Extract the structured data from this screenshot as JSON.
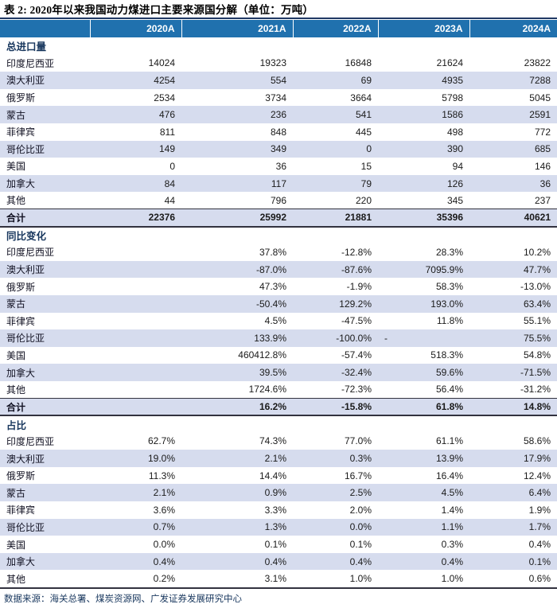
{
  "title": "表 2:  2020年以来我国动力煤进口主要来源国分解（单位：万吨）",
  "footer": {
    "source": "数据来源：海关总署、煤炭资源网、广发证券发展研究中心"
  },
  "colors": {
    "header_bg": "#2071ae",
    "row_alt_bg": "#d6dcee",
    "accent_line": "#1f3864",
    "rule_line": "#32323f",
    "section_header_text": "#17365d"
  },
  "chart_data": {
    "type": "table",
    "title": "2020年以来我国动力煤进口主要来源国分解（单位：万吨）",
    "columns": [
      "",
      "2020A",
      "2021A",
      "2022A",
      "2023A",
      "2024A"
    ],
    "sections": [
      {
        "header": "总进口量",
        "rows": [
          {
            "label": "印度尼西亚",
            "values": [
              "14024",
              "19323",
              "16848",
              "21624",
              "23822"
            ]
          },
          {
            "label": "澳大利亚",
            "values": [
              "4254",
              "554",
              "69",
              "4935",
              "7288"
            ]
          },
          {
            "label": "俄罗斯",
            "values": [
              "2534",
              "3734",
              "3664",
              "5798",
              "5045"
            ]
          },
          {
            "label": "蒙古",
            "values": [
              "476",
              "236",
              "541",
              "1586",
              "2591"
            ]
          },
          {
            "label": "菲律宾",
            "values": [
              "811",
              "848",
              "445",
              "498",
              "772"
            ]
          },
          {
            "label": "哥伦比亚",
            "values": [
              "149",
              "349",
              "0",
              "390",
              "685"
            ]
          },
          {
            "label": "美国",
            "values": [
              "0",
              "36",
              "15",
              "94",
              "146"
            ]
          },
          {
            "label": "加拿大",
            "values": [
              "84",
              "117",
              "79",
              "126",
              "36"
            ]
          },
          {
            "label": "其他",
            "values": [
              "44",
              "796",
              "220",
              "345",
              "237"
            ]
          },
          {
            "label": "合计",
            "values": [
              "22376",
              "25992",
              "21881",
              "35396",
              "40621"
            ],
            "is_total": true
          }
        ]
      },
      {
        "header": "同比变化",
        "rows": [
          {
            "label": "印度尼西亚",
            "values": [
              "",
              "37.8%",
              "-12.8%",
              "28.3%",
              "10.2%"
            ]
          },
          {
            "label": "澳大利亚",
            "values": [
              "",
              "-87.0%",
              "-87.6%",
              "7095.9%",
              "47.7%"
            ]
          },
          {
            "label": "俄罗斯",
            "values": [
              "",
              "47.3%",
              "-1.9%",
              "58.3%",
              "-13.0%"
            ]
          },
          {
            "label": "蒙古",
            "values": [
              "",
              "-50.4%",
              "129.2%",
              "193.0%",
              "63.4%"
            ]
          },
          {
            "label": "菲律宾",
            "values": [
              "",
              "4.5%",
              "-47.5%",
              "11.8%",
              "55.1%"
            ]
          },
          {
            "label": "哥伦比亚",
            "values": [
              "",
              "133.9%",
              "-100.0%",
              "-",
              "75.5%"
            ]
          },
          {
            "label": "美国",
            "values": [
              "",
              "460412.8%",
              "-57.4%",
              "518.3%",
              "54.8%"
            ]
          },
          {
            "label": "加拿大",
            "values": [
              "",
              "39.5%",
              "-32.4%",
              "59.6%",
              "-71.5%"
            ]
          },
          {
            "label": "其他",
            "values": [
              "",
              "1724.6%",
              "-72.3%",
              "56.4%",
              "-31.2%"
            ]
          },
          {
            "label": "合计",
            "values": [
              "",
              "16.2%",
              "-15.8%",
              "61.8%",
              "14.8%"
            ],
            "is_total": true
          }
        ]
      },
      {
        "header": "占比",
        "rows": [
          {
            "label": "印度尼西亚",
            "values": [
              "62.7%",
              "74.3%",
              "77.0%",
              "61.1%",
              "58.6%"
            ]
          },
          {
            "label": "澳大利亚",
            "values": [
              "19.0%",
              "2.1%",
              "0.3%",
              "13.9%",
              "17.9%"
            ]
          },
          {
            "label": "俄罗斯",
            "values": [
              "11.3%",
              "14.4%",
              "16.7%",
              "16.4%",
              "12.4%"
            ]
          },
          {
            "label": "蒙古",
            "values": [
              "2.1%",
              "0.9%",
              "2.5%",
              "4.5%",
              "6.4%"
            ]
          },
          {
            "label": "菲律宾",
            "values": [
              "3.6%",
              "3.3%",
              "2.0%",
              "1.4%",
              "1.9%"
            ]
          },
          {
            "label": "哥伦比亚",
            "values": [
              "0.7%",
              "1.3%",
              "0.0%",
              "1.1%",
              "1.7%"
            ]
          },
          {
            "label": "美国",
            "values": [
              "0.0%",
              "0.1%",
              "0.1%",
              "0.3%",
              "0.4%"
            ]
          },
          {
            "label": "加拿大",
            "values": [
              "0.4%",
              "0.4%",
              "0.4%",
              "0.4%",
              "0.1%"
            ]
          },
          {
            "label": "其他",
            "values": [
              "0.2%",
              "3.1%",
              "1.0%",
              "1.0%",
              "0.6%"
            ]
          }
        ]
      }
    ]
  }
}
